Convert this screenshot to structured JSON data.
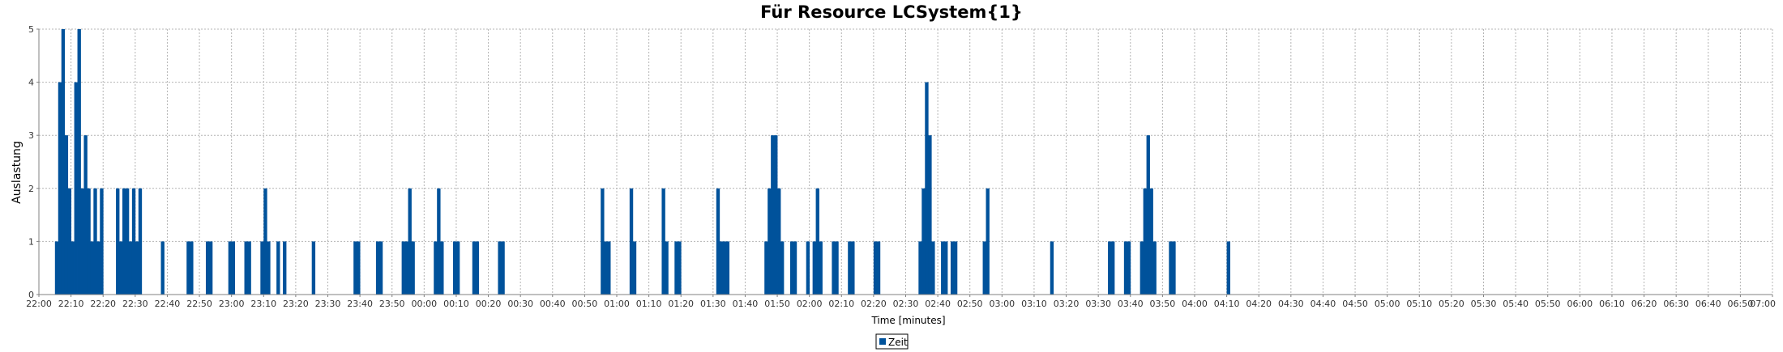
{
  "chart_data": {
    "type": "bar",
    "title": "Für Resource LCSystem{1}",
    "xlabel": "Time [minutes]",
    "ylabel": "Auslastung",
    "ylim": [
      0,
      5
    ],
    "yticks": [
      0,
      1,
      2,
      3,
      4,
      5
    ],
    "xlim": [
      "22:00",
      "07:00"
    ],
    "xtick_interval_minutes": 10,
    "grid": true,
    "legend_position": "bottom-center",
    "colors": {
      "bar": "#00529b",
      "grid": "#b4b4b4",
      "axis": "#808080"
    },
    "series": [
      {
        "name": "Zeit",
        "points": [
          [
            "22:05",
            1
          ],
          [
            "22:06",
            4
          ],
          [
            "22:07",
            5
          ],
          [
            "22:08",
            3
          ],
          [
            "22:09",
            2
          ],
          [
            "22:10",
            1
          ],
          [
            "22:11",
            4
          ],
          [
            "22:12",
            5
          ],
          [
            "22:13",
            2
          ],
          [
            "22:14",
            3
          ],
          [
            "22:15",
            2
          ],
          [
            "22:16",
            1
          ],
          [
            "22:17",
            2
          ],
          [
            "22:18",
            1
          ],
          [
            "22:19",
            2
          ],
          [
            "22:24",
            2
          ],
          [
            "22:25",
            1
          ],
          [
            "22:26",
            2
          ],
          [
            "22:27",
            2
          ],
          [
            "22:28",
            1
          ],
          [
            "22:29",
            2
          ],
          [
            "22:30",
            1
          ],
          [
            "22:31",
            2
          ],
          [
            "22:38",
            1
          ],
          [
            "22:46",
            1
          ],
          [
            "22:47",
            1
          ],
          [
            "22:52",
            1
          ],
          [
            "22:53",
            1
          ],
          [
            "22:59",
            1
          ],
          [
            "23:00",
            1
          ],
          [
            "23:04",
            1
          ],
          [
            "23:05",
            1
          ],
          [
            "23:09",
            1
          ],
          [
            "23:10",
            2
          ],
          [
            "23:11",
            1
          ],
          [
            "23:14",
            1
          ],
          [
            "23:16",
            1
          ],
          [
            "23:25",
            1
          ],
          [
            "23:38",
            1
          ],
          [
            "23:39",
            1
          ],
          [
            "23:45",
            1
          ],
          [
            "23:46",
            1
          ],
          [
            "23:53",
            1
          ],
          [
            "23:54",
            1
          ],
          [
            "23:55",
            2
          ],
          [
            "23:56",
            1
          ],
          [
            "00:03",
            1
          ],
          [
            "00:04",
            2
          ],
          [
            "00:05",
            1
          ],
          [
            "00:09",
            1
          ],
          [
            "00:10",
            1
          ],
          [
            "00:15",
            1
          ],
          [
            "00:16",
            1
          ],
          [
            "00:23",
            1
          ],
          [
            "00:24",
            1
          ],
          [
            "00:55",
            2
          ],
          [
            "00:56",
            1
          ],
          [
            "00:57",
            1
          ],
          [
            "01:04",
            2
          ],
          [
            "01:05",
            1
          ],
          [
            "01:14",
            2
          ],
          [
            "01:15",
            1
          ],
          [
            "01:18",
            1
          ],
          [
            "01:19",
            1
          ],
          [
            "01:31",
            2
          ],
          [
            "01:32",
            1
          ],
          [
            "01:33",
            1
          ],
          [
            "01:34",
            1
          ],
          [
            "01:46",
            1
          ],
          [
            "01:47",
            2
          ],
          [
            "01:48",
            3
          ],
          [
            "01:49",
            3
          ],
          [
            "01:50",
            2
          ],
          [
            "01:51",
            1
          ],
          [
            "01:54",
            1
          ],
          [
            "01:55",
            1
          ],
          [
            "01:59",
            1
          ],
          [
            "02:01",
            1
          ],
          [
            "02:02",
            2
          ],
          [
            "02:03",
            1
          ],
          [
            "02:07",
            1
          ],
          [
            "02:08",
            1
          ],
          [
            "02:12",
            1
          ],
          [
            "02:13",
            1
          ],
          [
            "02:20",
            1
          ],
          [
            "02:21",
            1
          ],
          [
            "02:34",
            1
          ],
          [
            "02:35",
            2
          ],
          [
            "02:36",
            4
          ],
          [
            "02:37",
            3
          ],
          [
            "02:38",
            1
          ],
          [
            "02:41",
            1
          ],
          [
            "02:42",
            1
          ],
          [
            "02:44",
            1
          ],
          [
            "02:45",
            1
          ],
          [
            "02:54",
            1
          ],
          [
            "02:55",
            2
          ],
          [
            "03:15",
            1
          ],
          [
            "03:33",
            1
          ],
          [
            "03:34",
            1
          ],
          [
            "03:38",
            1
          ],
          [
            "03:39",
            1
          ],
          [
            "03:43",
            1
          ],
          [
            "03:44",
            2
          ],
          [
            "03:45",
            3
          ],
          [
            "03:46",
            2
          ],
          [
            "03:47",
            1
          ],
          [
            "03:52",
            1
          ],
          [
            "03:53",
            1
          ],
          [
            "04:10",
            1
          ]
        ]
      }
    ]
  }
}
